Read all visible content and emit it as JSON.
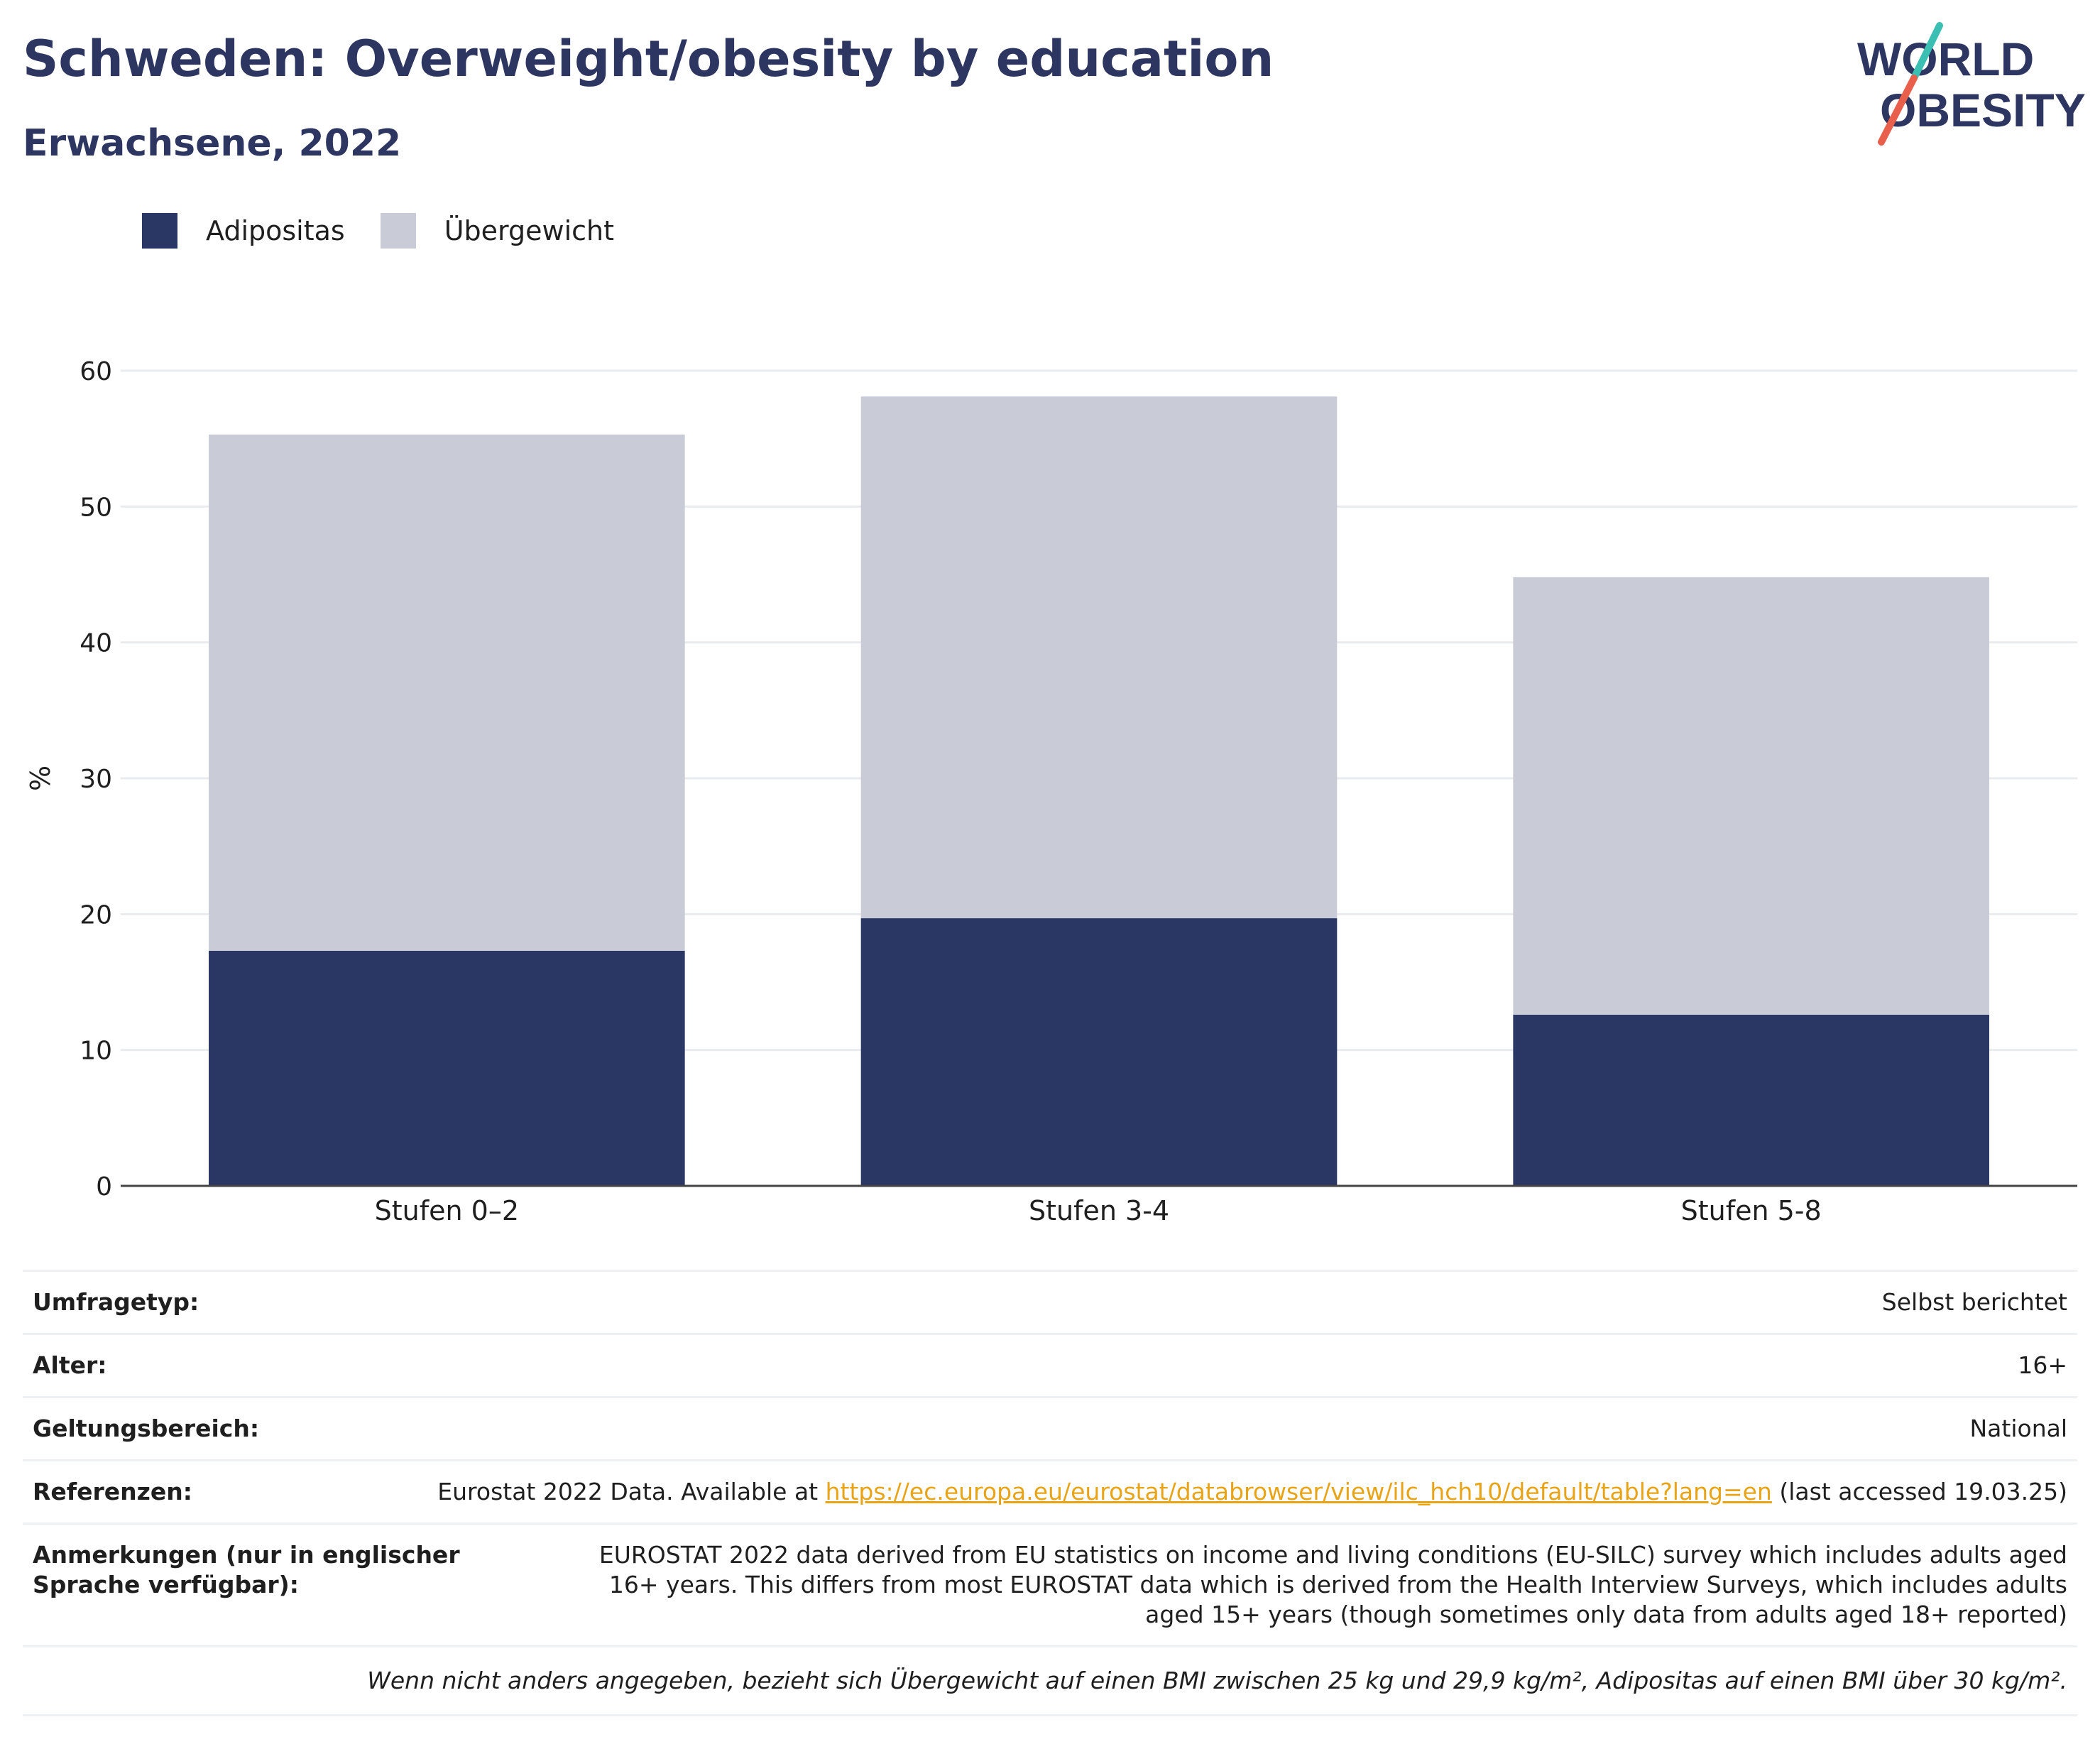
{
  "header": {
    "title": "Schweden: Overweight/obesity by education",
    "subtitle": "Erwachsene, 2022"
  },
  "logo": {
    "line1": "WORLD",
    "line2": "OBESITY",
    "text_color": "#2d3561",
    "slash_colors": [
      "#3bbfb2",
      "#e8604c"
    ]
  },
  "legend": {
    "items": [
      {
        "label": "Adipositas",
        "color": "#2a3663"
      },
      {
        "label": "Übergewicht",
        "color": "#c9ccd7"
      }
    ]
  },
  "chart_data": {
    "type": "bar",
    "stacked": true,
    "categories": [
      "Stufen 0–2",
      "Stufen 3-4",
      "Stufen 5-8"
    ],
    "series": [
      {
        "name": "Adipositas",
        "values": [
          17.3,
          19.7,
          12.6
        ],
        "color": "#2a3663"
      },
      {
        "name": "Übergewicht",
        "values": [
          38.0,
          38.4,
          32.2
        ],
        "color": "#c9ccd7"
      }
    ],
    "ylabel": "%",
    "ylim": [
      0,
      60
    ],
    "yticks": [
      0,
      10,
      20,
      30,
      40,
      50,
      60
    ],
    "grid": true,
    "legend_position": "top-left"
  },
  "metadata": {
    "survey_type_label": "Umfragetyp:",
    "survey_type_value": "Selbst berichtet",
    "age_label": "Alter:",
    "age_value": "16+",
    "scope_label": "Geltungsbereich:",
    "scope_value": "National",
    "references_label": "Referenzen:",
    "references_pre": "Eurostat 2022 Data. Available at ",
    "references_link": "https://ec.europa.eu/eurostat/databrowser/view/ilc_hch10/default/table?lang=en",
    "references_post": " (last accessed 19.03.25)",
    "notes_label": "Anmerkungen (nur in englischer Sprache verfügbar):",
    "notes_value": "EUROSTAT 2022 data derived from EU statistics on income and living conditions (EU-SILC) survey which includes adults aged 16+ years. This differs from most EUROSTAT data which is derived from the Health Interview Surveys, which includes adults aged 15+ years (though sometimes only data from adults aged 18+ reported)",
    "footnote": "Wenn nicht anders angegeben, bezieht sich Übergewicht auf einen BMI zwischen 25 kg und 29,9 kg/m², Adipositas auf einen BMI über 30 kg/m²."
  }
}
